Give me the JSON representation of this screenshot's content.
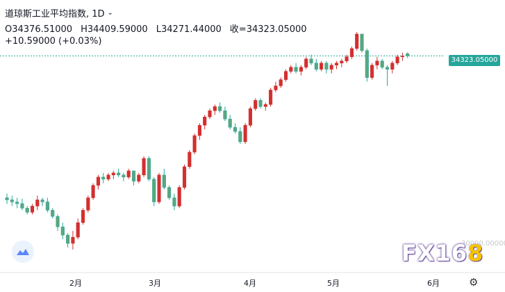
{
  "header": {
    "title": "道琼斯工业平均指数, 1D",
    "open": "O34376.51000",
    "high": "H34409.59000",
    "low": "L34271.44000",
    "close": "收=34323.05000",
    "change": "+10.59000 (+0.03%)"
  },
  "price_tag": "34323.05000",
  "lower_tick_label": "30000.00000",
  "brand": {
    "main": "FX16",
    "accent": "8"
  },
  "colors": {
    "up": "#d32f2f",
    "down": "#26a69a",
    "down_fill": "#5aa67f"
  },
  "icons": [
    "chevron-down-icon",
    "tv-logo-icon",
    "gear-icon"
  ],
  "chart_data": {
    "type": "candlestick",
    "x_tick_labels": [
      "2月",
      "3月",
      "4月",
      "5月",
      "6月"
    ],
    "current_price": 34323.05,
    "candles": [
      [
        30900,
        31000,
        30750,
        30850
      ],
      [
        30850,
        30950,
        30700,
        30800
      ],
      [
        30800,
        30900,
        30650,
        30760
      ],
      [
        30760,
        30880,
        30600,
        30650
      ],
      [
        30650,
        30700,
        30500,
        30550
      ],
      [
        30550,
        30750,
        30500,
        30700
      ],
      [
        30700,
        30950,
        30600,
        30850
      ],
      [
        30850,
        30900,
        30700,
        30800
      ],
      [
        30800,
        30900,
        30550,
        30600
      ],
      [
        30600,
        30650,
        30400,
        30450
      ],
      [
        30450,
        30500,
        30100,
        30200
      ],
      [
        30200,
        30300,
        29900,
        30000
      ],
      [
        30000,
        30050,
        29700,
        29800
      ],
      [
        29800,
        30100,
        29650,
        29950
      ],
      [
        29950,
        30400,
        29900,
        30300
      ],
      [
        30300,
        30650,
        30250,
        30600
      ],
      [
        30600,
        30950,
        30550,
        30900
      ],
      [
        30900,
        31250,
        30850,
        31200
      ],
      [
        31200,
        31450,
        31100,
        31400
      ],
      [
        31400,
        31500,
        31250,
        31350
      ],
      [
        31350,
        31500,
        31300,
        31450
      ],
      [
        31450,
        31550,
        31350,
        31500
      ],
      [
        31500,
        31600,
        31400,
        31450
      ],
      [
        31450,
        31500,
        31300,
        31400
      ],
      [
        31400,
        31600,
        31350,
        31550
      ],
      [
        31550,
        31500,
        31200,
        31300
      ],
      [
        31300,
        31500,
        31250,
        31450
      ],
      [
        31450,
        31900,
        31400,
        31850
      ],
      [
        31850,
        31900,
        31300,
        31350
      ],
      [
        31350,
        31400,
        30700,
        30800
      ],
      [
        30800,
        31500,
        30750,
        31450
      ],
      [
        31450,
        31600,
        31100,
        31150
      ],
      [
        31150,
        31200,
        30850,
        30900
      ],
      [
        30900,
        31000,
        30600,
        30700
      ],
      [
        30700,
        31200,
        30650,
        31150
      ],
      [
        31150,
        31700,
        31100,
        31650
      ],
      [
        31650,
        32050,
        31600,
        32000
      ],
      [
        32000,
        32450,
        31950,
        32400
      ],
      [
        32400,
        32700,
        32300,
        32650
      ],
      [
        32650,
        32900,
        32550,
        32850
      ],
      [
        32850,
        33050,
        32800,
        33000
      ],
      [
        33000,
        33150,
        32900,
        33100
      ],
      [
        33100,
        33200,
        32950,
        33000
      ],
      [
        33000,
        33100,
        32750,
        32800
      ],
      [
        32800,
        32900,
        32550,
        32600
      ],
      [
        32600,
        32700,
        32450,
        32500
      ],
      [
        32500,
        32600,
        32200,
        32250
      ],
      [
        32250,
        32700,
        32200,
        32650
      ],
      [
        32650,
        33100,
        32600,
        33050
      ],
      [
        33050,
        33300,
        33000,
        33250
      ],
      [
        33250,
        33300,
        33050,
        33100
      ],
      [
        33100,
        33200,
        33000,
        33150
      ],
      [
        33150,
        33550,
        33100,
        33500
      ],
      [
        33500,
        33700,
        33450,
        33600
      ],
      [
        33600,
        33800,
        33550,
        33750
      ],
      [
        33750,
        34000,
        33700,
        33950
      ],
      [
        33950,
        34100,
        33900,
        34050
      ],
      [
        34050,
        34150,
        33900,
        33950
      ],
      [
        33950,
        34100,
        33850,
        34050
      ],
      [
        34050,
        34300,
        34000,
        34250
      ],
      [
        34250,
        34350,
        34100,
        34150
      ],
      [
        34150,
        34250,
        33950,
        34000
      ],
      [
        34000,
        34200,
        33950,
        34150
      ],
      [
        34150,
        34200,
        33900,
        34000
      ],
      [
        34000,
        34150,
        33900,
        34100
      ],
      [
        34100,
        34200,
        34000,
        34150
      ],
      [
        34150,
        34250,
        34050,
        34200
      ],
      [
        34200,
        34350,
        34150,
        34300
      ],
      [
        34300,
        34550,
        34250,
        34500
      ],
      [
        34500,
        34900,
        34450,
        34850
      ],
      [
        34850,
        34850,
        34400,
        34450
      ],
      [
        34450,
        34500,
        33700,
        33800
      ],
      [
        33800,
        34150,
        33750,
        34100
      ],
      [
        34100,
        34300,
        34000,
        34200
      ],
      [
        34200,
        34250,
        34000,
        34050
      ],
      [
        34050,
        34100,
        33600,
        34000
      ],
      [
        34000,
        34200,
        33900,
        34150
      ],
      [
        34150,
        34350,
        34100,
        34300
      ],
      [
        34300,
        34400,
        34200,
        34320
      ],
      [
        34376.51,
        34409.59,
        34271.44,
        34323.05
      ]
    ]
  }
}
